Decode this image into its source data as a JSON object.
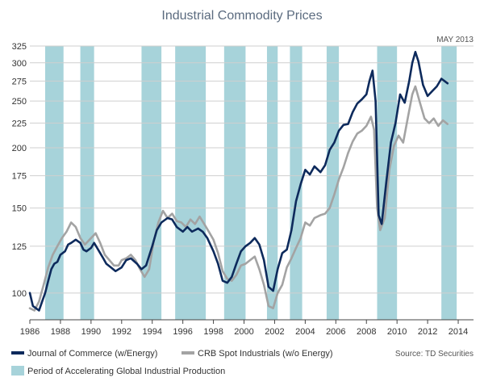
{
  "chart_data": {
    "type": "line",
    "title": "Industrial Commodity Prices",
    "date_label": "MAY 2013",
    "source": "Source: TD Securities",
    "xlim": [
      1986,
      2015
    ],
    "x_ticks": [
      "1986",
      "1988",
      "1990",
      "1992",
      "1994",
      "1996",
      "1998",
      "2000",
      "2002",
      "2004",
      "2006",
      "2008",
      "2010",
      "2012",
      "2014"
    ],
    "y_scale": "log",
    "ylim": [
      88,
      325
    ],
    "y_ticks": [
      "100",
      "125",
      "150",
      "175",
      "200",
      "225",
      "250",
      "275",
      "300",
      "325"
    ],
    "shaded_label": "Period of Accelerating Global Industrial Production",
    "shaded_periods": [
      [
        1987.0,
        1988.2
      ],
      [
        1989.3,
        1990.2
      ],
      [
        1993.3,
        1994.6
      ],
      [
        1995.5,
        1997.5
      ],
      [
        1998.7,
        2000.1
      ],
      [
        2001.5,
        2002.2
      ],
      [
        2003.0,
        2003.8
      ],
      [
        2005.4,
        2006.2
      ],
      [
        2008.7,
        2010.0
      ],
      [
        2012.9,
        2013.9
      ]
    ],
    "series": [
      {
        "name": "Journal of Commerce (w/Energy)",
        "color": "#0d2a5c",
        "points": [
          [
            1986.0,
            100
          ],
          [
            1986.2,
            94
          ],
          [
            1986.4,
            93
          ],
          [
            1986.6,
            92
          ],
          [
            1986.8,
            96
          ],
          [
            1987.0,
            100
          ],
          [
            1987.2,
            106
          ],
          [
            1987.4,
            112
          ],
          [
            1987.6,
            115
          ],
          [
            1987.8,
            116
          ],
          [
            1988.0,
            120
          ],
          [
            1988.3,
            122
          ],
          [
            1988.5,
            126
          ],
          [
            1988.7,
            127
          ],
          [
            1989.0,
            129
          ],
          [
            1989.3,
            127
          ],
          [
            1989.5,
            123
          ],
          [
            1989.7,
            122
          ],
          [
            1990.0,
            124
          ],
          [
            1990.2,
            127
          ],
          [
            1990.4,
            124
          ],
          [
            1990.6,
            121
          ],
          [
            1990.8,
            118
          ],
          [
            1991.0,
            115
          ],
          [
            1991.3,
            113
          ],
          [
            1991.6,
            111
          ],
          [
            1992.0,
            113
          ],
          [
            1992.3,
            117
          ],
          [
            1992.6,
            118
          ],
          [
            1993.0,
            115
          ],
          [
            1993.3,
            112
          ],
          [
            1993.6,
            114
          ],
          [
            1994.0,
            125
          ],
          [
            1994.3,
            135
          ],
          [
            1994.6,
            140
          ],
          [
            1995.0,
            143
          ],
          [
            1995.3,
            142
          ],
          [
            1995.6,
            137
          ],
          [
            1996.0,
            134
          ],
          [
            1996.3,
            137
          ],
          [
            1996.6,
            134
          ],
          [
            1997.0,
            136
          ],
          [
            1997.3,
            134
          ],
          [
            1997.6,
            130
          ],
          [
            1998.0,
            122
          ],
          [
            1998.3,
            115
          ],
          [
            1998.6,
            106
          ],
          [
            1998.9,
            105
          ],
          [
            1999.2,
            108
          ],
          [
            1999.5,
            115
          ],
          [
            1999.8,
            122
          ],
          [
            2000.1,
            125
          ],
          [
            2000.4,
            127
          ],
          [
            2000.7,
            130
          ],
          [
            2001.0,
            126
          ],
          [
            2001.3,
            117
          ],
          [
            2001.6,
            103
          ],
          [
            2001.9,
            101
          ],
          [
            2002.2,
            112
          ],
          [
            2002.5,
            121
          ],
          [
            2002.8,
            123
          ],
          [
            2003.1,
            135
          ],
          [
            2003.4,
            155
          ],
          [
            2003.7,
            168
          ],
          [
            2004.0,
            180
          ],
          [
            2004.3,
            176
          ],
          [
            2004.6,
            183
          ],
          [
            2005.0,
            178
          ],
          [
            2005.3,
            184
          ],
          [
            2005.6,
            198
          ],
          [
            2005.9,
            205
          ],
          [
            2006.2,
            217
          ],
          [
            2006.5,
            223
          ],
          [
            2006.8,
            224
          ],
          [
            2007.1,
            237
          ],
          [
            2007.4,
            247
          ],
          [
            2007.7,
            252
          ],
          [
            2008.0,
            258
          ],
          [
            2008.2,
            275
          ],
          [
            2008.4,
            289
          ],
          [
            2008.6,
            250
          ],
          [
            2008.8,
            145
          ],
          [
            2009.0,
            139
          ],
          [
            2009.3,
            170
          ],
          [
            2009.6,
            205
          ],
          [
            2009.9,
            225
          ],
          [
            2010.2,
            258
          ],
          [
            2010.5,
            248
          ],
          [
            2010.8,
            275
          ],
          [
            2011.0,
            300
          ],
          [
            2011.2,
            316
          ],
          [
            2011.4,
            302
          ],
          [
            2011.7,
            270
          ],
          [
            2012.0,
            256
          ],
          [
            2012.3,
            262
          ],
          [
            2012.6,
            268
          ],
          [
            2012.9,
            278
          ],
          [
            2013.1,
            275
          ],
          [
            2013.3,
            272
          ]
        ]
      },
      {
        "name": "CRB Spot Industrials (w/o Energy)",
        "color": "#a3a3a3",
        "points": [
          [
            1986.0,
            93
          ],
          [
            1986.3,
            92
          ],
          [
            1986.6,
            96
          ],
          [
            1986.9,
            104
          ],
          [
            1987.2,
            113
          ],
          [
            1987.5,
            120
          ],
          [
            1987.8,
            125
          ],
          [
            1988.1,
            130
          ],
          [
            1988.4,
            134
          ],
          [
            1988.7,
            140
          ],
          [
            1989.0,
            137
          ],
          [
            1989.3,
            130
          ],
          [
            1989.6,
            126
          ],
          [
            1990.0,
            130
          ],
          [
            1990.3,
            133
          ],
          [
            1990.6,
            127
          ],
          [
            1990.9,
            120
          ],
          [
            1991.2,
            117
          ],
          [
            1991.5,
            114
          ],
          [
            1991.8,
            114
          ],
          [
            1992.0,
            117
          ],
          [
            1992.3,
            118
          ],
          [
            1992.6,
            120
          ],
          [
            1992.9,
            117
          ],
          [
            1993.2,
            112
          ],
          [
            1993.5,
            108
          ],
          [
            1993.8,
            112
          ],
          [
            1994.1,
            128
          ],
          [
            1994.4,
            140
          ],
          [
            1994.7,
            148
          ],
          [
            1995.0,
            143
          ],
          [
            1995.3,
            146
          ],
          [
            1995.6,
            141
          ],
          [
            1995.9,
            140
          ],
          [
            1996.2,
            137
          ],
          [
            1996.5,
            142
          ],
          [
            1996.8,
            139
          ],
          [
            1997.1,
            144
          ],
          [
            1997.4,
            139
          ],
          [
            1997.7,
            134
          ],
          [
            1998.0,
            129
          ],
          [
            1998.3,
            121
          ],
          [
            1998.6,
            111
          ],
          [
            1998.9,
            107
          ],
          [
            1999.2,
            106
          ],
          [
            1999.5,
            109
          ],
          [
            1999.8,
            114
          ],
          [
            2000.1,
            115
          ],
          [
            2000.4,
            117
          ],
          [
            2000.7,
            119
          ],
          [
            2001.0,
            112
          ],
          [
            2001.3,
            104
          ],
          [
            2001.6,
            94
          ],
          [
            2001.9,
            93
          ],
          [
            2002.2,
            100
          ],
          [
            2002.5,
            104
          ],
          [
            2002.8,
            113
          ],
          [
            2003.1,
            118
          ],
          [
            2003.4,
            124
          ],
          [
            2003.7,
            130
          ],
          [
            2004.0,
            140
          ],
          [
            2004.3,
            138
          ],
          [
            2004.6,
            143
          ],
          [
            2005.0,
            145
          ],
          [
            2005.3,
            146
          ],
          [
            2005.6,
            150
          ],
          [
            2005.9,
            160
          ],
          [
            2006.2,
            172
          ],
          [
            2006.5,
            182
          ],
          [
            2006.8,
            195
          ],
          [
            2007.1,
            206
          ],
          [
            2007.4,
            214
          ],
          [
            2007.7,
            217
          ],
          [
            2008.0,
            222
          ],
          [
            2008.3,
            232
          ],
          [
            2008.5,
            218
          ],
          [
            2008.7,
            150
          ],
          [
            2008.9,
            135
          ],
          [
            2009.2,
            143
          ],
          [
            2009.5,
            180
          ],
          [
            2009.8,
            202
          ],
          [
            2010.1,
            212
          ],
          [
            2010.4,
            205
          ],
          [
            2010.7,
            230
          ],
          [
            2011.0,
            258
          ],
          [
            2011.2,
            268
          ],
          [
            2011.5,
            248
          ],
          [
            2011.8,
            230
          ],
          [
            2012.1,
            225
          ],
          [
            2012.4,
            230
          ],
          [
            2012.7,
            222
          ],
          [
            2013.0,
            228
          ],
          [
            2013.3,
            224
          ]
        ]
      }
    ]
  }
}
